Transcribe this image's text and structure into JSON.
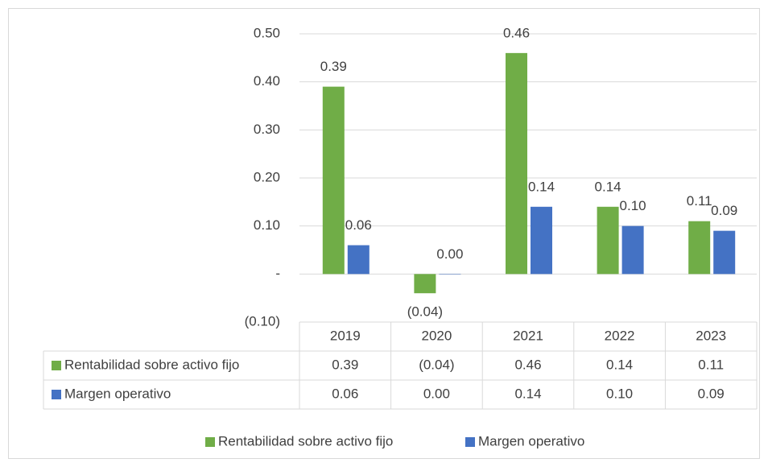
{
  "chart_data": {
    "type": "bar",
    "categories": [
      "2019",
      "2020",
      "2021",
      "2022",
      "2023"
    ],
    "series": [
      {
        "name": "Rentabilidad sobre activo fijo",
        "color": "#70ad47",
        "values": [
          0.39,
          -0.04,
          0.46,
          0.14,
          0.11
        ],
        "value_labels": [
          "0.39",
          "(0.04)",
          "0.46",
          "0.14",
          "0.11"
        ]
      },
      {
        "name": "Margen operativo",
        "color": "#4472c4",
        "values": [
          0.06,
          0,
          0.14,
          0.1,
          0.09
        ],
        "value_labels": [
          "0.06",
          "0.00",
          "0.14",
          "0.10",
          "0.09"
        ]
      }
    ],
    "ylim": [
      -0.1,
      0.5
    ],
    "yticks": [
      {
        "value": 0.5,
        "label": "0.50"
      },
      {
        "value": 0.4,
        "label": "0.40"
      },
      {
        "value": 0.3,
        "label": "0.30"
      },
      {
        "value": 0.2,
        "label": "0.20"
      },
      {
        "value": 0.1,
        "label": "0.10"
      },
      {
        "value": 0,
        "label": "-"
      },
      {
        "value": -0.1,
        "label": "(0.10)"
      }
    ],
    "grid": true,
    "legend": "bottom",
    "data_table": true
  }
}
